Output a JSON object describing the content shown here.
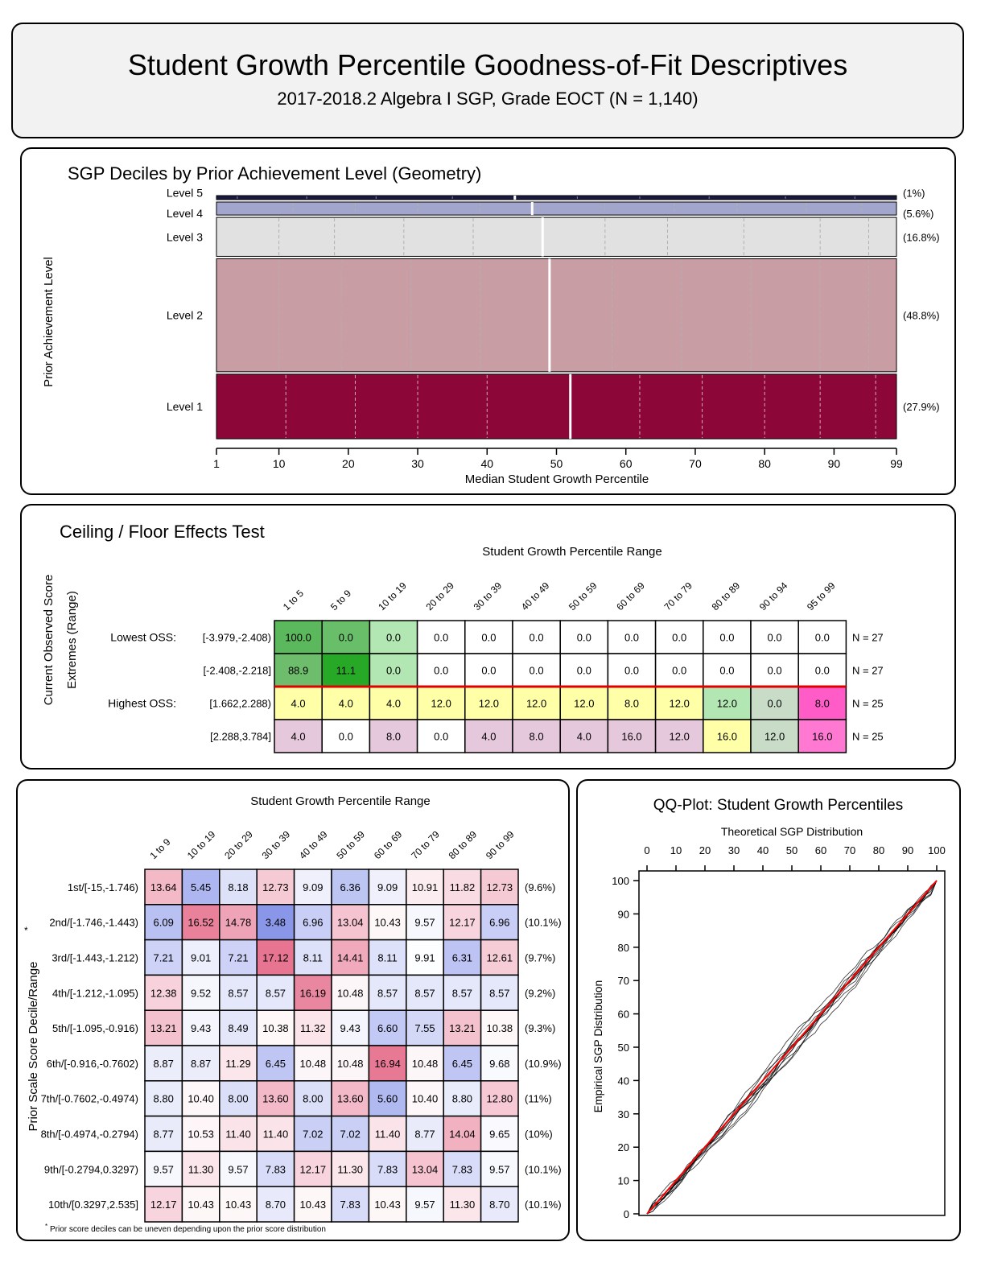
{
  "header": {
    "title": "Student Growth Percentile Goodness-of-Fit Descriptives",
    "subtitle": "2017-2018.2 Algebra I SGP, Grade EOCT (N = 1,140)"
  },
  "chart_data": [
    {
      "type": "bar",
      "title": "SGP Deciles by Prior Achievement Level (Geometry)",
      "xlabel": "Median Student Growth Percentile",
      "ylabel": "Prior Achievement Level",
      "xticks": [
        "1",
        "10",
        "20",
        "30",
        "40",
        "50",
        "60",
        "70",
        "80",
        "90",
        "99"
      ],
      "xlim": [
        1,
        99
      ],
      "levels": [
        {
          "label": "Level 5",
          "pct": "(1%)",
          "share": 1.0,
          "median": 44,
          "color": "#1a1a40",
          "deciles": [
            4,
            14,
            24,
            35,
            44,
            53,
            62,
            72,
            83,
            93
          ]
        },
        {
          "label": "Level 4",
          "pct": "(5.6%)",
          "share": 5.6,
          "median": 46.5,
          "color": "#a2a5cc",
          "deciles": [
            12,
            21,
            30,
            39,
            47,
            57,
            67,
            76,
            86,
            94
          ]
        },
        {
          "label": "Level 3",
          "pct": "(16.8%)",
          "share": 16.8,
          "median": 48,
          "color": "#e1e1e1",
          "deciles": [
            10,
            18,
            28,
            38,
            48,
            57,
            66,
            77,
            88,
            95
          ]
        },
        {
          "label": "Level 2",
          "pct": "(48.8%)",
          "share": 48.8,
          "median": 49,
          "color": "#c99da4",
          "deciles": [
            10,
            19,
            29,
            39,
            49,
            58,
            68,
            78,
            88,
            95
          ]
        },
        {
          "label": "Level 1",
          "pct": "(27.9%)",
          "share": 27.9,
          "median": 52,
          "color": "#8c0638",
          "deciles": [
            11,
            21,
            30,
            40,
            52,
            62,
            71,
            80,
            88,
            96
          ]
        }
      ]
    },
    {
      "type": "table",
      "title": "Ceiling / Floor Effects Test",
      "col_header": "Student Growth Percentile Range",
      "ylabel": "Current Observed Score Extremes (Range)",
      "columns": [
        "1 to 5",
        "5 to 9",
        "10 to 19",
        "20 to 29",
        "30 to 39",
        "40 to 49",
        "50 to 59",
        "60 to 69",
        "70 to 79",
        "80 to 89",
        "90 to 94",
        "95 to 99"
      ],
      "rows": [
        {
          "group": "Lowest OSS:",
          "range": "[-3.979,-2.408)",
          "n": "N = 27",
          "values": [
            "100.0",
            "0.0",
            "0.0",
            "0.0",
            "0.0",
            "0.0",
            "0.0",
            "0.0",
            "0.0",
            "0.0",
            "0.0",
            "0.0"
          ],
          "colors": [
            "#5cb85c",
            "#69bf69",
            "#b2e6b2",
            "#ffffff",
            "#ffffff",
            "#ffffff",
            "#ffffff",
            "#ffffff",
            "#ffffff",
            "#ffffff",
            "#ffffff",
            "#ffffff"
          ]
        },
        {
          "group": "",
          "range": "[-2.408,-2.218]",
          "n": "N = 27",
          "values": [
            "88.9",
            "11.1",
            "0.0",
            "0.0",
            "0.0",
            "0.0",
            "0.0",
            "0.0",
            "0.0",
            "0.0",
            "0.0",
            "0.0"
          ],
          "colors": [
            "#6dbd6d",
            "#27a827",
            "#b2e6b2",
            "#ffffff",
            "#ffffff",
            "#ffffff",
            "#ffffff",
            "#ffffff",
            "#ffffff",
            "#ffffff",
            "#ffffff",
            "#ffffff"
          ]
        },
        {
          "group": "Highest OSS:",
          "range": "[1.662,2.288)",
          "n": "N = 25",
          "values": [
            "4.0",
            "4.0",
            "4.0",
            "12.0",
            "12.0",
            "12.0",
            "12.0",
            "8.0",
            "12.0",
            "12.0",
            "0.0",
            "8.0"
          ],
          "colors": [
            "#ffffa8",
            "#ffffa8",
            "#ffffa8",
            "#ffffa8",
            "#ffffa8",
            "#ffffa8",
            "#ffffa8",
            "#ffffa8",
            "#ffffa8",
            "#b2e6b2",
            "#c8dcc8",
            "#ff5cc8"
          ]
        },
        {
          "group": "",
          "range": "[2.288,3.784]",
          "n": "N = 25",
          "values": [
            "4.0",
            "0.0",
            "8.0",
            "0.0",
            "4.0",
            "8.0",
            "4.0",
            "16.0",
            "12.0",
            "16.0",
            "12.0",
            "16.0"
          ],
          "colors": [
            "#e6c8dc",
            "#ffffff",
            "#e6c8dc",
            "#ffffff",
            "#e6c8dc",
            "#e6c8dc",
            "#e6c8dc",
            "#e6c8dc",
            "#e6c8dc",
            "#ffffa8",
            "#c8dcc8",
            "#ff78d2"
          ]
        }
      ]
    },
    {
      "type": "heatmap",
      "col_header": "Student Growth Percentile Range",
      "ylabel": "Prior Scale Score Decile/Range",
      "ylabel_mark": "*",
      "footnote_mark": "*",
      "footnote": "Prior score deciles can be uneven depending upon the prior score distribution",
      "columns": [
        "1 to 9",
        "10 to 19",
        "20 to 29",
        "30 to 39",
        "40 to 49",
        "50 to 59",
        "60 to 69",
        "70 to 79",
        "80 to 89",
        "90 to 99"
      ],
      "rows": [
        {
          "label": "1st/[-15,-1.746)",
          "pct": "(9.6%)",
          "values": [
            13.64,
            5.45,
            8.18,
            12.73,
            9.09,
            6.36,
            9.09,
            10.91,
            11.82,
            12.73
          ]
        },
        {
          "label": "2nd/[-1.746,-1.443)",
          "pct": "(10.1%)",
          "values": [
            6.09,
            16.52,
            14.78,
            3.48,
            6.96,
            13.04,
            10.43,
            9.57,
            12.17,
            6.96
          ]
        },
        {
          "label": "3rd/[-1.443,-1.212)",
          "pct": "(9.7%)",
          "values": [
            7.21,
            9.01,
            7.21,
            17.12,
            8.11,
            14.41,
            8.11,
            9.91,
            6.31,
            12.61
          ]
        },
        {
          "label": "4th/[-1.212,-1.095)",
          "pct": "(9.2%)",
          "values": [
            12.38,
            9.52,
            8.57,
            8.57,
            16.19,
            10.48,
            8.57,
            8.57,
            8.57,
            8.57
          ]
        },
        {
          "label": "5th/[-1.095,-0.916)",
          "pct": "(9.3%)",
          "values": [
            13.21,
            9.43,
            8.49,
            10.38,
            11.32,
            9.43,
            6.6,
            7.55,
            13.21,
            10.38
          ]
        },
        {
          "label": "6th/[-0.916,-0.7602)",
          "pct": "(10.9%)",
          "values": [
            8.87,
            8.87,
            11.29,
            6.45,
            10.48,
            10.48,
            16.94,
            10.48,
            6.45,
            9.68
          ]
        },
        {
          "label": "7th/[-0.7602,-0.4974)",
          "pct": "(11%)",
          "values": [
            8.8,
            10.4,
            8.0,
            13.6,
            8.0,
            13.6,
            5.6,
            10.4,
            8.8,
            12.8
          ]
        },
        {
          "label": "8th/[-0.4974,-0.2794)",
          "pct": "(10%)",
          "values": [
            8.77,
            10.53,
            11.4,
            11.4,
            7.02,
            7.02,
            11.4,
            8.77,
            14.04,
            9.65
          ]
        },
        {
          "label": "9th/[-0.2794,0.3297)",
          "pct": "(10.1%)",
          "values": [
            9.57,
            11.3,
            9.57,
            7.83,
            12.17,
            11.3,
            7.83,
            13.04,
            7.83,
            9.57
          ]
        },
        {
          "label": "10th/[0.3297,2.535]",
          "pct": "(10.1%)",
          "values": [
            12.17,
            10.43,
            10.43,
            8.7,
            10.43,
            7.83,
            10.43,
            9.57,
            11.3,
            8.7
          ]
        }
      ]
    },
    {
      "type": "line",
      "title": "QQ-Plot: Student Growth Percentiles",
      "xlabel": "Theoretical SGP Distribution",
      "ylabel": "Empirical SGP Distribution",
      "xticks": [
        "0",
        "10",
        "20",
        "30",
        "40",
        "50",
        "60",
        "70",
        "80",
        "90",
        "100"
      ],
      "yticks": [
        "0",
        "10",
        "20",
        "30",
        "40",
        "50",
        "60",
        "70",
        "80",
        "90",
        "100"
      ],
      "xlim": [
        0,
        100
      ],
      "ylim": [
        0,
        100
      ],
      "reference_line": {
        "x": [
          0,
          100
        ],
        "y": [
          0,
          100
        ],
        "color": "#ff0000"
      },
      "series_count": 10,
      "series_color": "#000000"
    }
  ]
}
